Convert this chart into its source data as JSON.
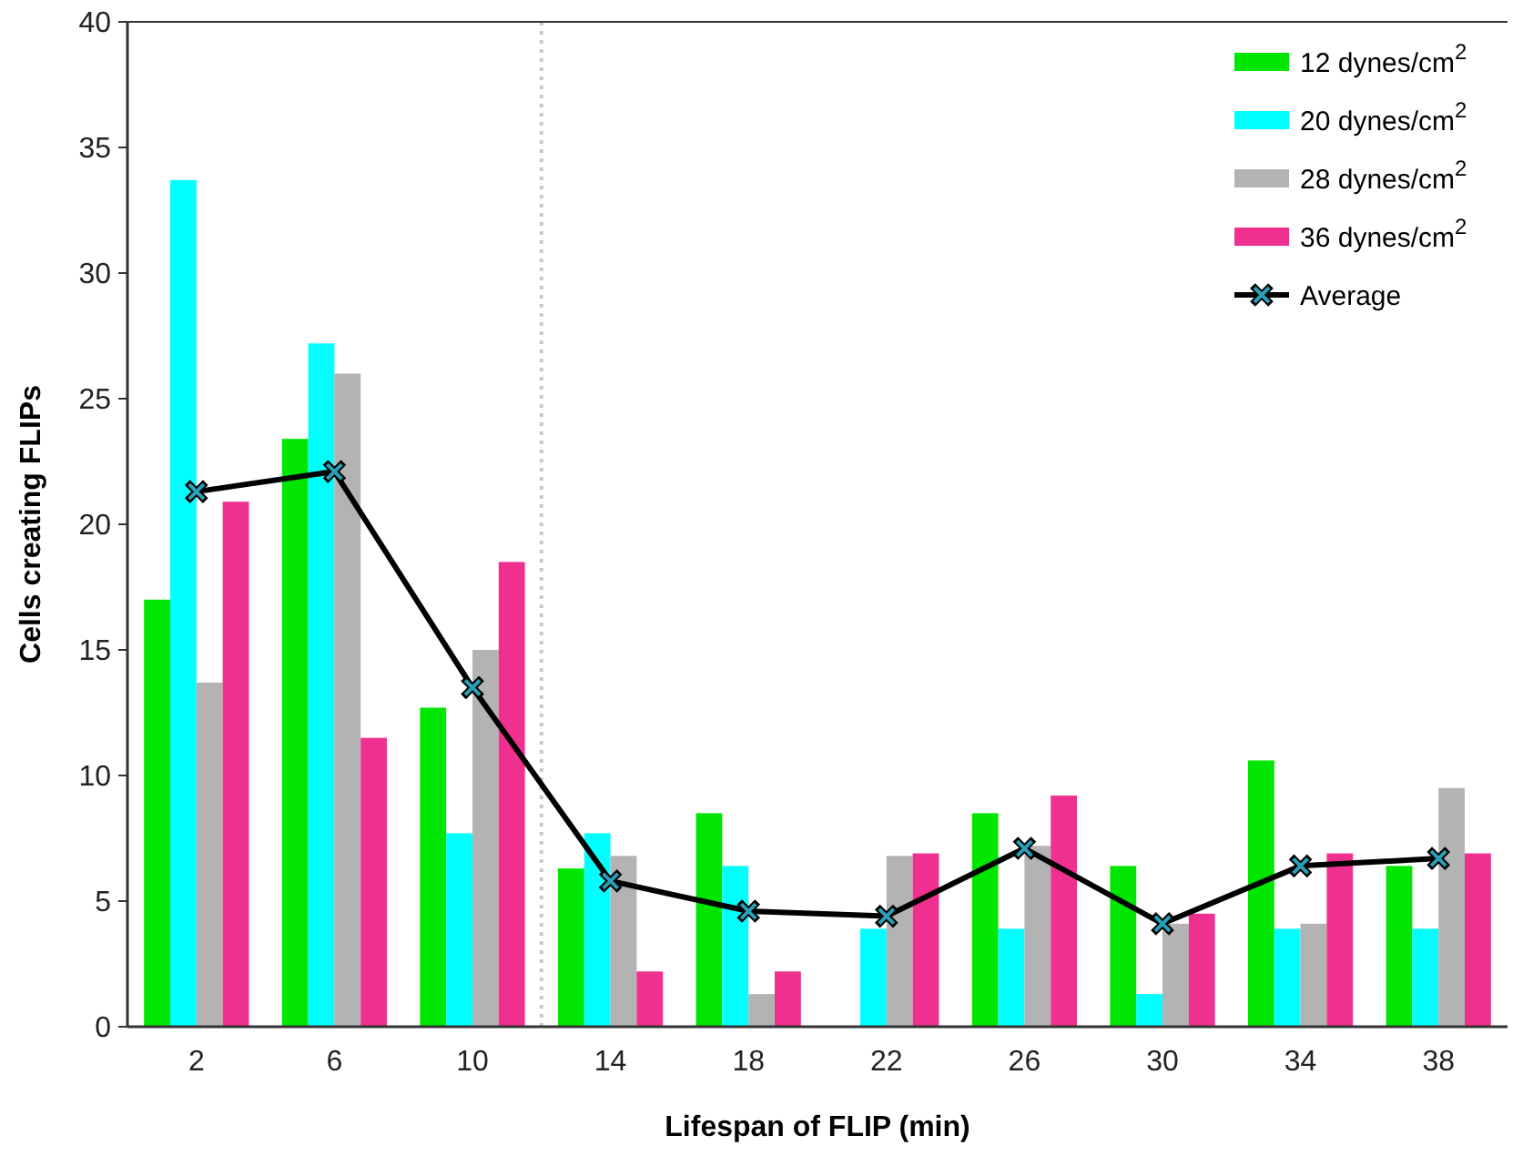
{
  "chart_data": {
    "type": "bar",
    "xlabel": "Lifespan of FLIP (min)",
    "ylabel": "Cells creating FLIPs",
    "x": [
      2,
      6,
      10,
      14,
      18,
      22,
      26,
      30,
      34,
      38
    ],
    "xlim": [
      0,
      40
    ],
    "xticks": [
      2,
      6,
      10,
      14,
      18,
      22,
      26,
      30,
      34,
      38
    ],
    "ylim": [
      0,
      40
    ],
    "yticks": [
      0,
      5,
      10,
      15,
      20,
      25,
      30,
      35,
      40
    ],
    "grid": false,
    "legend": "top right",
    "series": [
      {
        "name": "12 dynes/cm$^{2}$",
        "color": "#00e600",
        "values": [
          17,
          23.4,
          12.7,
          6.3,
          8.5,
          0,
          8.5,
          6.4,
          10.6,
          6.4
        ]
      },
      {
        "name": "20 dynes/cm$^{2}$",
        "color": "#00ffff",
        "values": [
          33.7,
          27.2,
          7.7,
          7.7,
          6.4,
          3.9,
          3.9,
          1.3,
          3.9,
          3.9
        ]
      },
      {
        "name": "28 dynes/cm$^{2}$",
        "color": "#b3b3b3",
        "values": [
          13.7,
          26,
          15,
          6.8,
          1.3,
          6.8,
          7.2,
          4.1,
          4.1,
          9.5
        ]
      },
      {
        "name": "36 dynes/cm$^{2}$",
        "color": "#f0308f",
        "values": [
          20.9,
          11.5,
          18.5,
          2.2,
          2.2,
          6.9,
          9.2,
          4.5,
          6.9,
          6.9
        ]
      },
      {
        "name": "Average",
        "type": "line",
        "color": "#000000",
        "marker": "cross",
        "values": [
          21.3,
          22.1,
          13.5,
          5.8,
          4.6,
          4.4,
          7.1,
          4.1,
          6.4,
          6.7
        ]
      }
    ],
    "ref_lines": [
      {
        "axis": "x",
        "value": 12,
        "color": "#c8c8c8",
        "line_style": "dotted"
      }
    ]
  }
}
